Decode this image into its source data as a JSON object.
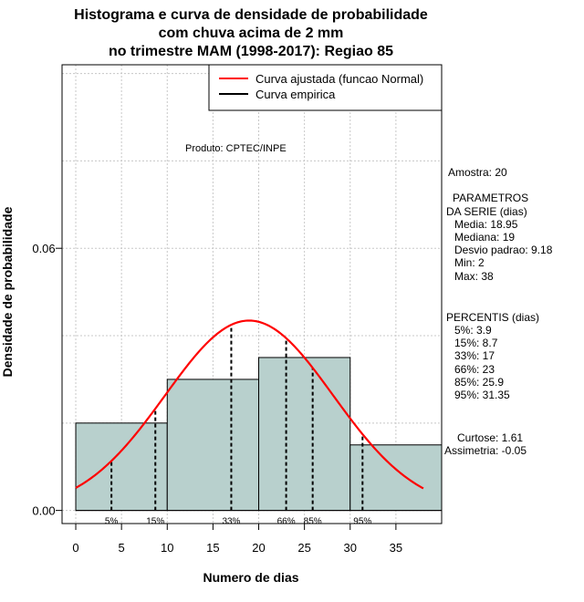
{
  "chart_data": {
    "type": "histogram",
    "title_lines": [
      "Histograma e curva de densidade de probabilidade",
      "com chuva acima de 2 mm",
      "no trimestre MAM (1998-2017): Regiao 85"
    ],
    "xlabel": "Numero de dias",
    "ylabel": "Densidade de probabilidade",
    "xlim": [
      -1.5,
      40
    ],
    "ylim": [
      -0.003,
      0.102
    ],
    "x_ticks": [
      0,
      5,
      10,
      15,
      20,
      25,
      30,
      35
    ],
    "y_ticks": [
      0.0,
      0.06
    ],
    "y_tick_labels": [
      "0.00",
      "0.06"
    ],
    "grid": true,
    "bins": [
      {
        "start": 0,
        "end": 10,
        "density": 0.02
      },
      {
        "start": 10,
        "end": 20,
        "density": 0.03
      },
      {
        "start": 20,
        "end": 30,
        "density": 0.035
      },
      {
        "start": 30,
        "end": 40,
        "density": 0.015
      }
    ],
    "bar_color": "#b8d0cd",
    "normal_curve": {
      "label": "Curva ajustada (funcao Normal)",
      "mean": 18.95,
      "sd": 9.18,
      "x_range": [
        0,
        38
      ],
      "color": "#ff0000"
    },
    "empirical_curve_label": "Curva empirica",
    "empirical_color": "#000000",
    "percentile_markers": [
      {
        "label": "5%",
        "x": 3.9
      },
      {
        "label": "15%",
        "x": 8.7
      },
      {
        "label": "33%",
        "x": 17
      },
      {
        "label": "66%",
        "x": 23
      },
      {
        "label": "85%",
        "x": 25.9
      },
      {
        "label": "95%",
        "x": 31.35
      }
    ],
    "product_note": "Produto: CPTEC/INPE"
  },
  "stats": {
    "amostra": "Amostra: 20",
    "parametros_title_1": "PARAMETROS",
    "parametros_title_2": "DA SERIE (dias)",
    "media": "Media: 18.95",
    "mediana": "Mediana: 19",
    "desvio": "Desvio padrao: 9.18",
    "min": "Min: 2",
    "max": "Max: 38",
    "percentis_title": "PERCENTIS (dias)",
    "p5": "5%: 3.9",
    "p15": "15%: 8.7",
    "p33": "33%: 17",
    "p66": "66%: 23",
    "p85": "85%: 25.9",
    "p95": "95%: 31.35",
    "curtose": "Curtose: 1.61",
    "assimetria": "Assimetria: -0.05"
  }
}
